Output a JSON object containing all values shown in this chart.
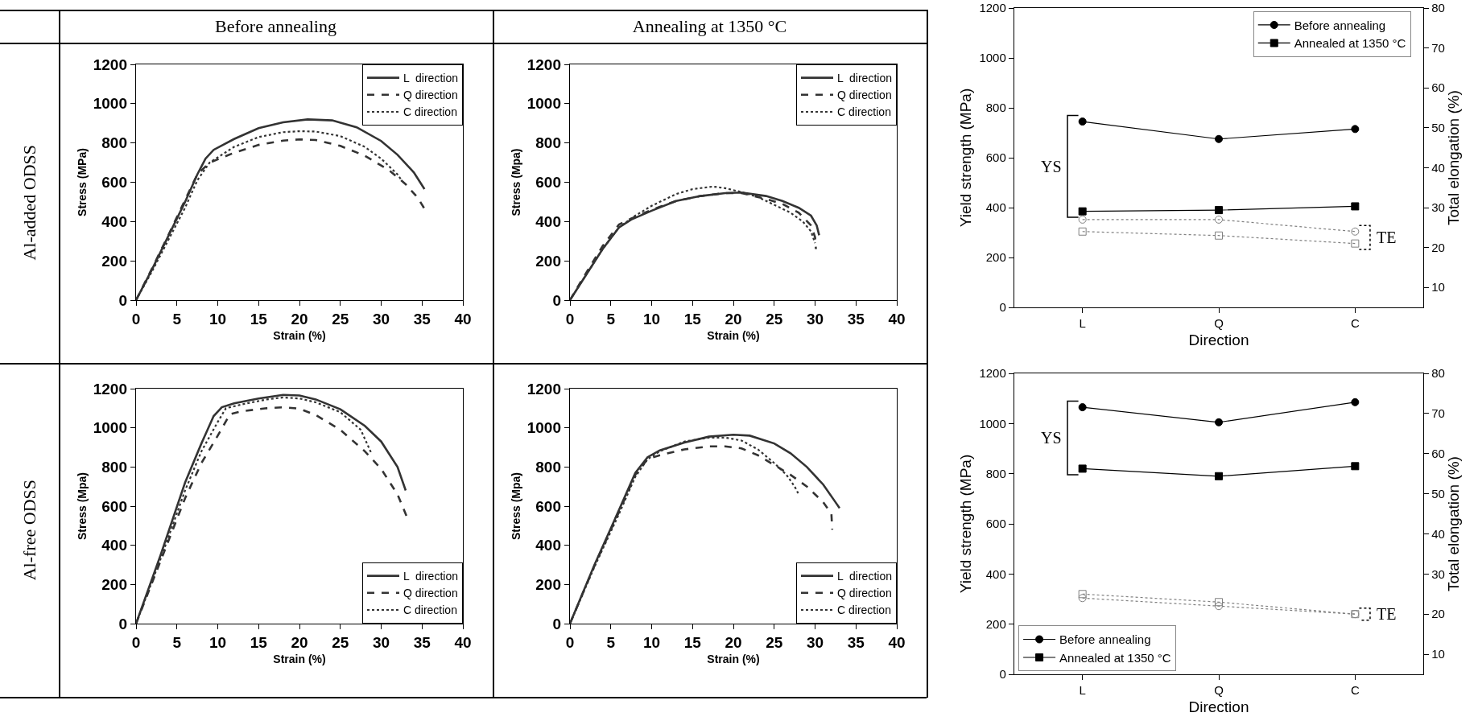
{
  "chart_data": [
    {
      "type": "line",
      "title": "Before annealing",
      "annotations": [
        "Al-added ODSS"
      ],
      "xlabel": "Strain (%)",
      "ylabel": "Stress (MPa)",
      "xlim": [
        0,
        40
      ],
      "xticks": [
        0,
        5,
        10,
        15,
        20,
        25,
        30,
        35,
        40
      ],
      "ylim": [
        0,
        1200
      ],
      "yticks": [
        0,
        200,
        400,
        600,
        800,
        1000,
        1200
      ],
      "grid": false,
      "legend": "top right",
      "series": [
        {
          "name": "L  direction",
          "color": "#333333",
          "line_style": "solid",
          "x": [
            0,
            2,
            4,
            6,
            7.5,
            8.5,
            9.5,
            12,
            15,
            18,
            21,
            24,
            27,
            30,
            32,
            34,
            35.3
          ],
          "values": [
            0,
            160,
            330,
            500,
            640,
            720,
            765,
            820,
            875,
            905,
            920,
            915,
            880,
            810,
            740,
            650,
            565
          ]
        },
        {
          "name": "Q direction",
          "color": "#333333",
          "line_style": "dashed",
          "x": [
            0,
            2,
            4,
            6,
            7.5,
            9,
            12,
            15,
            18,
            20,
            22,
            25,
            28,
            31,
            33,
            34.5,
            35.3
          ],
          "values": [
            0,
            165,
            335,
            510,
            640,
            700,
            750,
            790,
            812,
            818,
            815,
            785,
            735,
            660,
            590,
            520,
            465
          ]
        },
        {
          "name": "C direction",
          "color": "#333333",
          "line_style": "dotted",
          "x": [
            0,
            2,
            4,
            6,
            7.5,
            9,
            12,
            15,
            18,
            20,
            22,
            25,
            28,
            30,
            32,
            32.5
          ],
          "values": [
            0,
            150,
            310,
            470,
            610,
            700,
            780,
            830,
            855,
            860,
            858,
            835,
            780,
            720,
            640,
            610
          ]
        }
      ]
    },
    {
      "type": "line",
      "title": "Annealing at 1350 °C",
      "xlabel": "Strain (%)",
      "ylabel": "Stress (Mpa)",
      "xlim": [
        0,
        40
      ],
      "xticks": [
        0,
        5,
        10,
        15,
        20,
        25,
        30,
        35,
        40
      ],
      "ylim": [
        0,
        1200
      ],
      "yticks": [
        0,
        200,
        400,
        600,
        800,
        1000,
        1200
      ],
      "grid": false,
      "legend": "top right",
      "series": [
        {
          "name": "L  direction",
          "color": "#333333",
          "line_style": "solid",
          "x": [
            0,
            2,
            4,
            6,
            7.5,
            10,
            13,
            16,
            19,
            21,
            24,
            26,
            28,
            29.5,
            30.2,
            30.5
          ],
          "values": [
            0,
            130,
            260,
            370,
            410,
            455,
            505,
            530,
            545,
            548,
            530,
            505,
            470,
            430,
            380,
            330
          ]
        },
        {
          "name": "Q direction",
          "color": "#333333",
          "line_style": "dashed",
          "x": [
            0,
            2,
            4,
            6,
            7.5,
            10,
            13,
            16,
            19,
            21,
            24,
            26,
            28,
            29.5,
            30,
            30.1
          ],
          "values": [
            0,
            140,
            275,
            385,
            415,
            460,
            505,
            530,
            545,
            545,
            515,
            490,
            445,
            380,
            320,
            260
          ]
        },
        {
          "name": "C direction",
          "color": "#333333",
          "line_style": "dotted",
          "x": [
            0,
            2,
            4,
            6,
            8,
            10,
            13,
            15,
            17.5,
            19,
            21,
            23,
            25,
            27,
            28.5,
            29.5,
            30
          ],
          "values": [
            0,
            130,
            260,
            370,
            430,
            480,
            540,
            565,
            578,
            570,
            550,
            525,
            485,
            445,
            400,
            350,
            290
          ]
        }
      ]
    },
    {
      "type": "line",
      "annotations": [
        "Al-free ODSS"
      ],
      "xlabel": "Strain (%)",
      "ylabel": "Stress (Mpa)",
      "xlim": [
        0,
        40
      ],
      "xticks": [
        0,
        5,
        10,
        15,
        20,
        25,
        30,
        35,
        40
      ],
      "ylim": [
        0,
        1200
      ],
      "yticks": [
        0,
        200,
        400,
        600,
        800,
        1000,
        1200
      ],
      "grid": false,
      "legend": "bottom right",
      "series": [
        {
          "name": "L  direction",
          "color": "#333333",
          "line_style": "solid",
          "x": [
            0,
            3,
            6,
            8,
            9.5,
            10.5,
            12,
            15,
            18,
            20,
            22,
            25,
            28,
            30,
            32,
            33
          ],
          "values": [
            0,
            350,
            720,
            920,
            1060,
            1105,
            1125,
            1150,
            1168,
            1165,
            1145,
            1095,
            1010,
            930,
            800,
            680
          ]
        },
        {
          "name": "Q direction",
          "color": "#333333",
          "line_style": "dashed",
          "x": [
            0,
            3,
            6,
            8,
            10,
            11.5,
            13,
            16,
            18,
            20,
            22,
            25,
            28,
            30,
            32,
            33.1
          ],
          "values": [
            0,
            320,
            640,
            820,
            960,
            1070,
            1085,
            1100,
            1105,
            1098,
            1065,
            990,
            880,
            790,
            660,
            550
          ]
        },
        {
          "name": "C direction",
          "color": "#333333",
          "line_style": "dotted",
          "x": [
            0,
            3,
            6,
            8,
            10,
            11,
            13,
            16,
            18,
            20,
            22,
            25,
            27.5,
            28.8
          ],
          "values": [
            0,
            330,
            680,
            880,
            1030,
            1100,
            1120,
            1145,
            1155,
            1150,
            1130,
            1080,
            990,
            870
          ]
        }
      ]
    },
    {
      "type": "line",
      "xlabel": "Strain (%)",
      "ylabel": "Stress (Mpa)",
      "xlim": [
        0,
        40
      ],
      "xticks": [
        0,
        5,
        10,
        15,
        20,
        25,
        30,
        35,
        40
      ],
      "ylim": [
        0,
        1200
      ],
      "yticks": [
        0,
        200,
        400,
        600,
        800,
        1000,
        1200
      ],
      "grid": false,
      "legend": "bottom right",
      "series": [
        {
          "name": "L  direction",
          "color": "#333333",
          "line_style": "solid",
          "x": [
            0,
            3,
            6,
            8,
            9.5,
            11,
            14,
            17,
            20,
            22,
            25,
            27,
            29,
            31,
            32.5,
            33
          ],
          "values": [
            0,
            300,
            580,
            770,
            850,
            885,
            925,
            955,
            965,
            960,
            920,
            870,
            800,
            710,
            620,
            590
          ]
        },
        {
          "name": "Q direction",
          "color": "#333333",
          "line_style": "dashed",
          "x": [
            0,
            3,
            6,
            8,
            9.5,
            11,
            14,
            17,
            19,
            21,
            23,
            25,
            27,
            29,
            31,
            32,
            32.1
          ],
          "values": [
            0,
            295,
            570,
            760,
            840,
            860,
            890,
            905,
            905,
            895,
            860,
            810,
            760,
            700,
            620,
            560,
            480
          ]
        },
        {
          "name": "C direction",
          "color": "#333333",
          "line_style": "dotted",
          "x": [
            0,
            3,
            6,
            8,
            9.5,
            11,
            14,
            17,
            19,
            21,
            23,
            25,
            26.5,
            27.5,
            28
          ],
          "values": [
            0,
            290,
            560,
            750,
            840,
            880,
            930,
            950,
            950,
            935,
            890,
            820,
            760,
            700,
            660
          ]
        }
      ]
    },
    {
      "type": "line",
      "xlabel": "Direction",
      "ylabel": "Yield strength (MPa)",
      "y2label": "Total elongation (%)",
      "annotations": [
        "YS",
        "TE"
      ],
      "categories": [
        "L",
        "Q",
        "C"
      ],
      "ylim": [
        0,
        1200
      ],
      "yticks": [
        0,
        200,
        400,
        600,
        800,
        1000,
        1200
      ],
      "y2lim": [
        5,
        80
      ],
      "y2ticks": [
        10,
        20,
        30,
        40,
        50,
        60,
        70,
        80
      ],
      "grid": false,
      "legend": "top right",
      "series": [
        {
          "name": "Before annealing",
          "color": "#000000",
          "marker": "circle",
          "line_style": "solid",
          "values": [
            745,
            675,
            715
          ]
        },
        {
          "name": "Annealed at 1350 °C",
          "color": "#000000",
          "marker": "square",
          "line_style": "solid",
          "values": [
            385,
            390,
            405
          ]
        },
        {
          "color": "#808080",
          "marker": "circle",
          "line_style": "dotted",
          "axis": "y2",
          "values": [
            27,
            27,
            24
          ]
        },
        {
          "color": "#808080",
          "marker": "square",
          "line_style": "dotted",
          "axis": "y2",
          "values": [
            24,
            23,
            21
          ]
        }
      ]
    },
    {
      "type": "line",
      "xlabel": "Direction",
      "ylabel": "Yield strength (MPa)",
      "y2label": "Total elongation (%)",
      "annotations": [
        "YS",
        "TE"
      ],
      "categories": [
        "L",
        "Q",
        "C"
      ],
      "ylim": [
        0,
        1200
      ],
      "yticks": [
        0,
        200,
        400,
        600,
        800,
        1000,
        1200
      ],
      "y2lim": [
        5,
        80
      ],
      "y2ticks": [
        10,
        20,
        30,
        40,
        50,
        60,
        70,
        80
      ],
      "grid": false,
      "legend": "bottom left",
      "series": [
        {
          "name": "Before annealing",
          "color": "#000000",
          "marker": "circle",
          "line_style": "solid",
          "values": [
            1065,
            1005,
            1085
          ]
        },
        {
          "name": "Annealed at 1350 °C",
          "color": "#000000",
          "marker": "square",
          "line_style": "solid",
          "values": [
            820,
            790,
            830
          ]
        },
        {
          "color": "#808080",
          "marker": "circle",
          "line_style": "dotted",
          "axis": "y2",
          "values": [
            24,
            22,
            20
          ]
        },
        {
          "color": "#808080",
          "marker": "square",
          "line_style": "dotted",
          "axis": "y2",
          "values": [
            25,
            23,
            20
          ]
        }
      ]
    }
  ]
}
